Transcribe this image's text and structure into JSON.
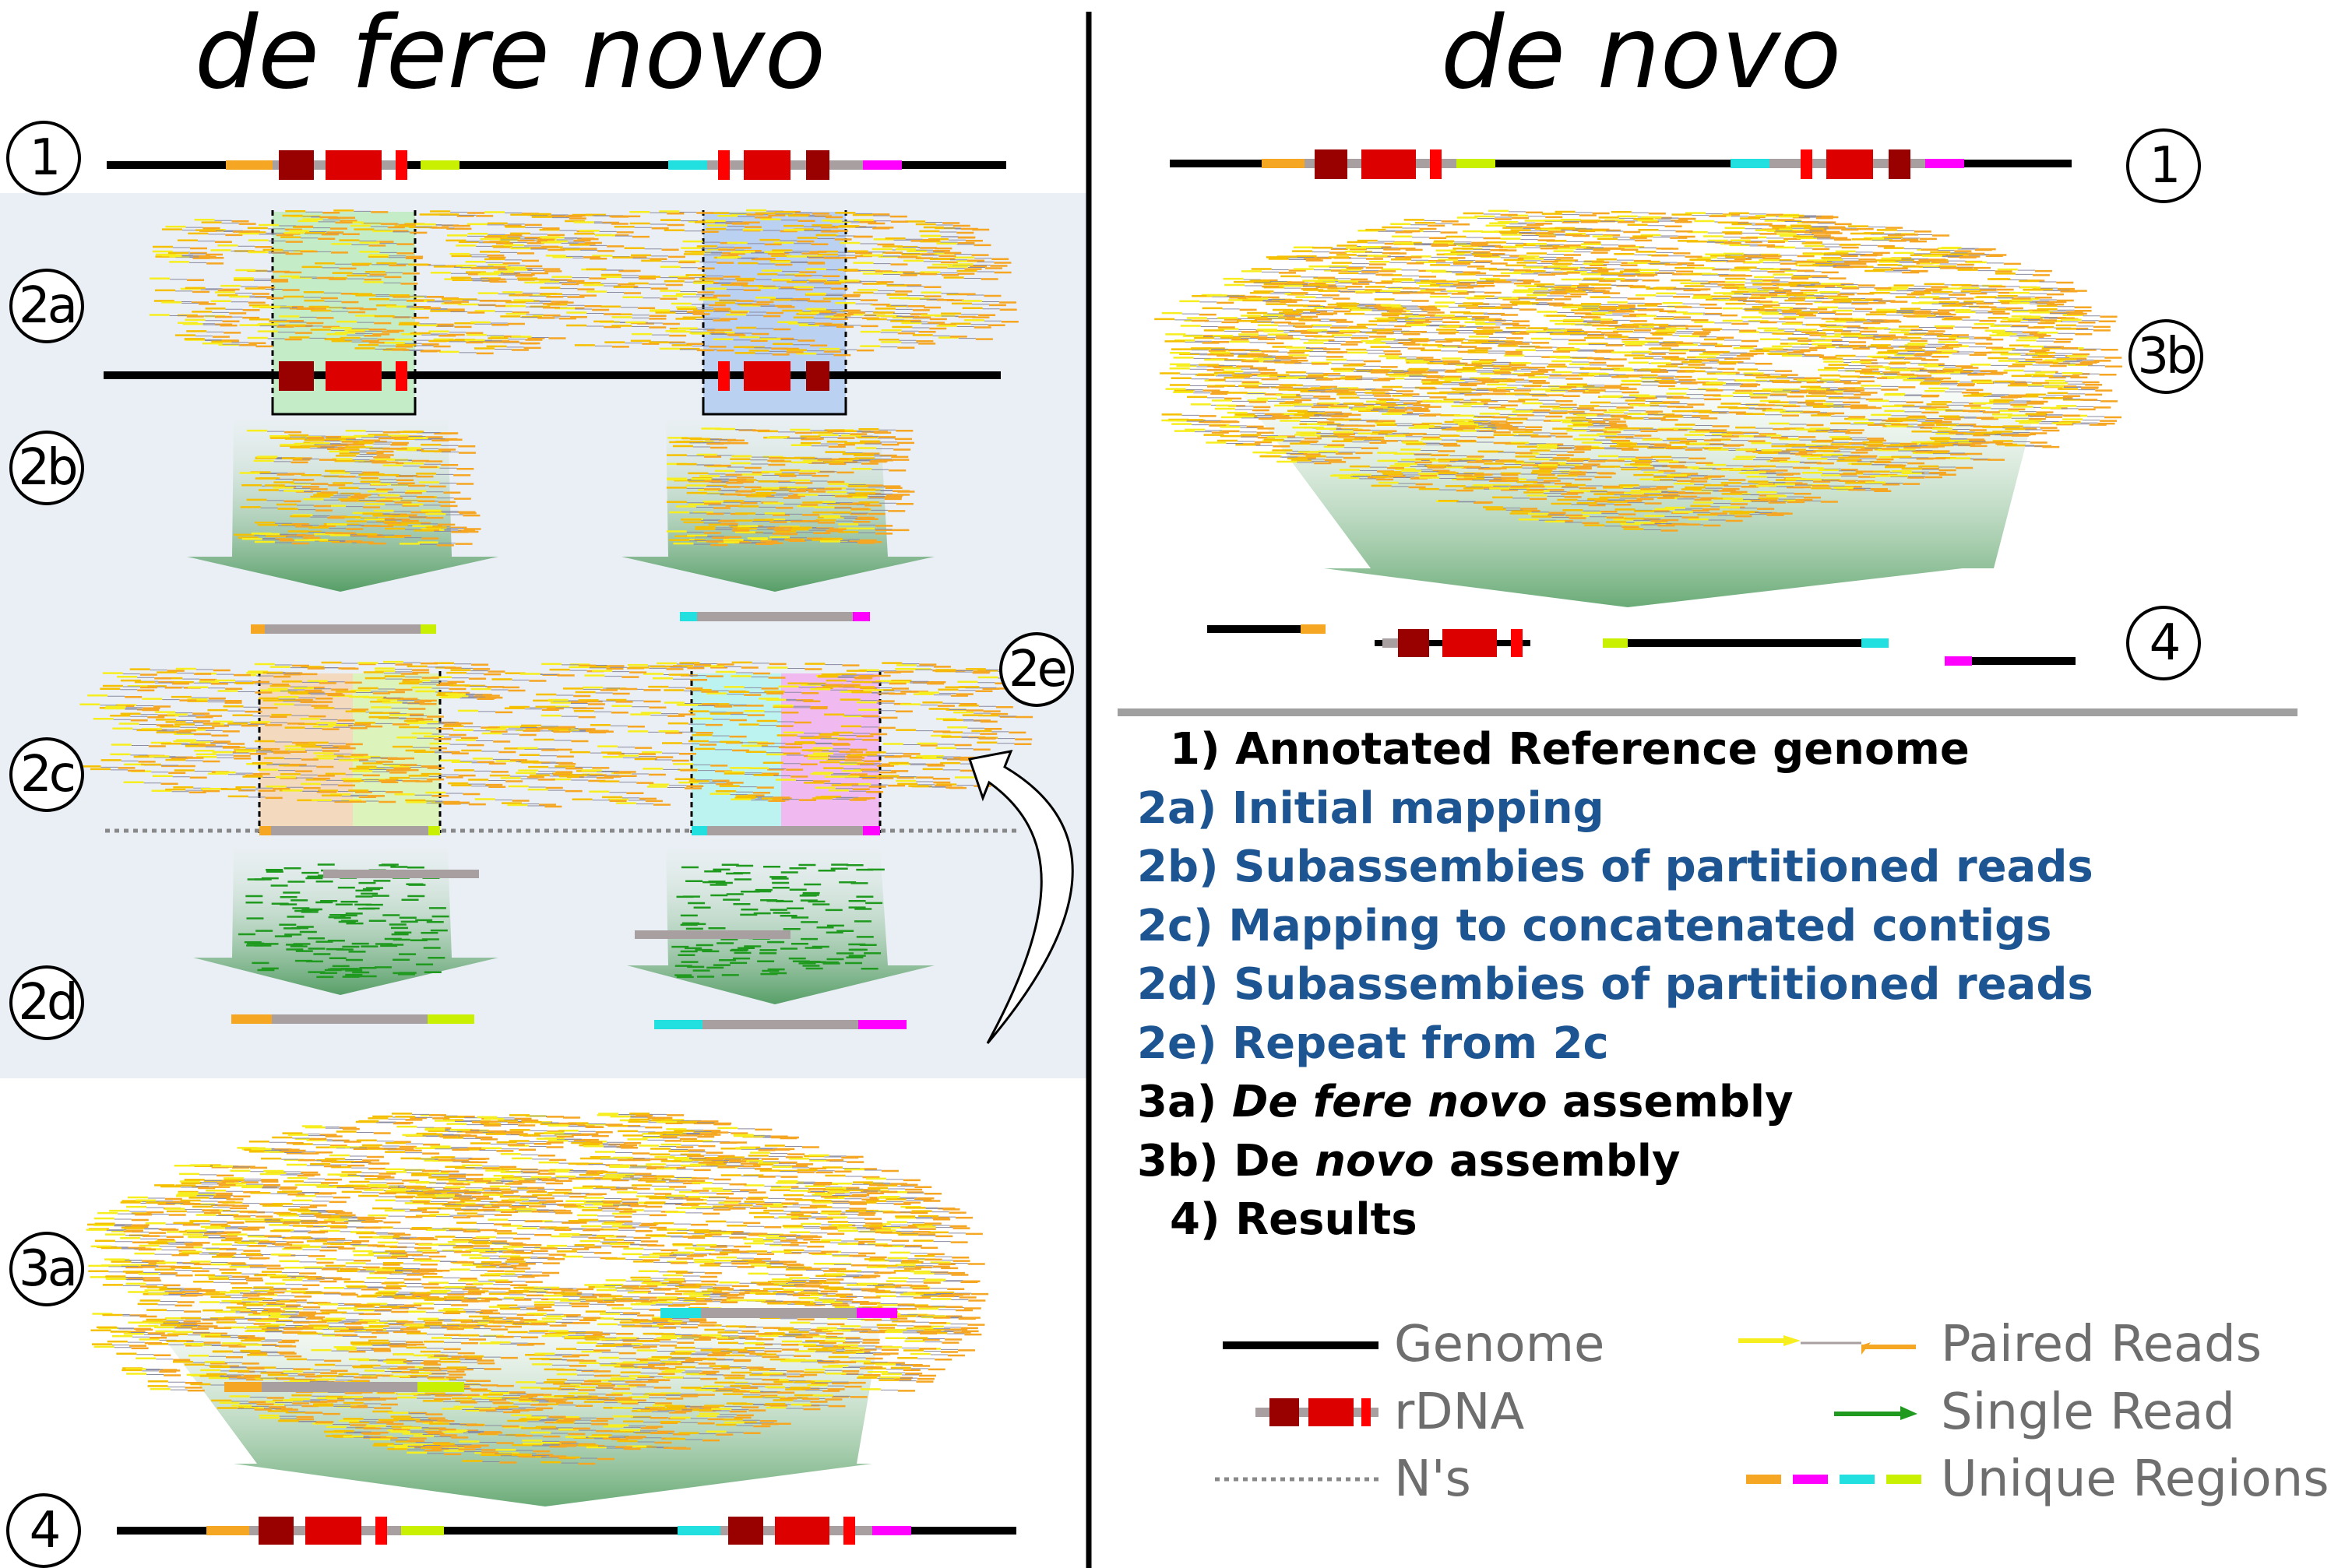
{
  "titles": {
    "left": "de fere novo",
    "right": "de novo"
  },
  "steps_left": [
    "1",
    "2a",
    "2b",
    "2c",
    "2e",
    "2d",
    "3a",
    "4"
  ],
  "steps_right": [
    "1",
    "3b",
    "4"
  ],
  "legend_steps": [
    {
      "prefix": "1) ",
      "text": "Annotated Reference genome",
      "style": "black"
    },
    {
      "prefix": "2a) ",
      "text": "Initial mapping",
      "style": "blue"
    },
    {
      "prefix": "2b) ",
      "text": "Subassembies of partitioned reads",
      "style": "blue"
    },
    {
      "prefix": "2c) ",
      "text": "Mapping to concatenated contigs",
      "style": "blue"
    },
    {
      "prefix": "2d) ",
      "text": "Subassembies of partitioned reads",
      "style": "blue"
    },
    {
      "prefix": "2e) ",
      "text": "Repeat from 2c",
      "style": "blue"
    },
    {
      "prefix": "3a) ",
      "italic": "De fere novo",
      "text": " assembly",
      "style": "black"
    },
    {
      "prefix": "3b) De ",
      "italic": "novo",
      "text": " assembly",
      "style": "black"
    },
    {
      "prefix": "4) ",
      "text": "Results",
      "style": "black"
    }
  ],
  "legend_key": {
    "genome": "Genome",
    "rdna": "rDNA",
    "ns": "N's",
    "paired_reads": "Paired Reads",
    "single_read": "Single Read",
    "unique_regions": "Unique Regions"
  },
  "colors": {
    "genome": "#000000",
    "rdna_dark": "#990000",
    "rdna_red": "#dd0000",
    "spacer": "#a8a0a0",
    "unique_orange": "#f5a623",
    "unique_magenta": "#ff00ff",
    "unique_cyan": "#22e0e0",
    "unique_lime": "#c8f000",
    "read_yellow": "#f7ee20",
    "read_orange": "#f5a623",
    "single_green": "#1f9a1f",
    "blue_text": "#1d5592",
    "panel_bg": "#eaeff5",
    "divider_grey": "#a0a0a0"
  }
}
